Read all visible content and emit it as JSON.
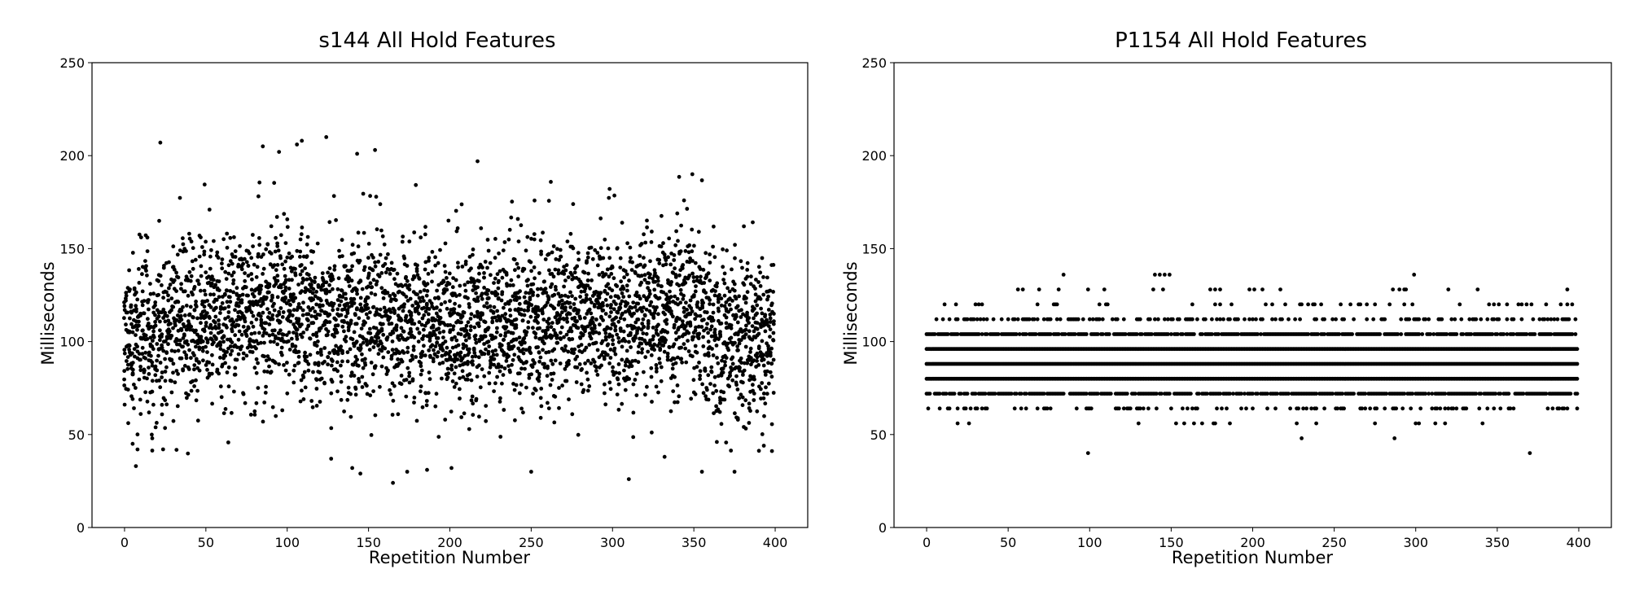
{
  "chart_data": [
    {
      "type": "scatter",
      "title": "s144 All Hold Features",
      "xlabel": "Repetition Number",
      "ylabel": "Milliseconds",
      "xlim": [
        -20,
        420
      ],
      "ylim": [
        0,
        250
      ],
      "xticks": [
        0,
        50,
        100,
        150,
        200,
        250,
        300,
        350,
        400
      ],
      "yticks": [
        0,
        50,
        100,
        150,
        200,
        250
      ],
      "grid": false,
      "marker_color": "#000000",
      "points_per_repetition": 10,
      "x_range": [
        0,
        399
      ],
      "y_range_observed": [
        24,
        210
      ],
      "center_profile": [
        {
          "x": 0,
          "y": 102
        },
        {
          "x": 50,
          "y": 112
        },
        {
          "x": 100,
          "y": 118
        },
        {
          "x": 150,
          "y": 115
        },
        {
          "x": 200,
          "y": 108
        },
        {
          "x": 250,
          "y": 112
        },
        {
          "x": 300,
          "y": 115
        },
        {
          "x": 340,
          "y": 120
        },
        {
          "x": 370,
          "y": 100
        },
        {
          "x": 400,
          "y": 104
        }
      ],
      "notable_points": [
        {
          "x": 22,
          "y": 207
        },
        {
          "x": 85,
          "y": 205
        },
        {
          "x": 95,
          "y": 202
        },
        {
          "x": 106,
          "y": 206
        },
        {
          "x": 109,
          "y": 208
        },
        {
          "x": 124,
          "y": 210
        },
        {
          "x": 143,
          "y": 201
        },
        {
          "x": 154,
          "y": 203
        },
        {
          "x": 217,
          "y": 197
        },
        {
          "x": 5,
          "y": 45
        },
        {
          "x": 8,
          "y": 42
        },
        {
          "x": 7,
          "y": 33
        },
        {
          "x": 127,
          "y": 37
        },
        {
          "x": 140,
          "y": 32
        },
        {
          "x": 145,
          "y": 29
        },
        {
          "x": 165,
          "y": 24
        },
        {
          "x": 186,
          "y": 31
        },
        {
          "x": 201,
          "y": 32
        },
        {
          "x": 250,
          "y": 30
        },
        {
          "x": 310,
          "y": 26
        },
        {
          "x": 332,
          "y": 38
        },
        {
          "x": 355,
          "y": 30
        },
        {
          "x": 375,
          "y": 30
        },
        {
          "x": 393,
          "y": 44
        }
      ]
    },
    {
      "type": "scatter",
      "title": "P1154 All Hold Features",
      "xlabel": "Repetition Number",
      "ylabel": "Milliseconds",
      "xlim": [
        -20,
        420
      ],
      "ylim": [
        0,
        250
      ],
      "xticks": [
        0,
        50,
        100,
        150,
        200,
        250,
        300,
        350,
        400
      ],
      "yticks": [
        0,
        50,
        100,
        150,
        200,
        250
      ],
      "grid": false,
      "marker_color": "#000000",
      "x_range": [
        0,
        399
      ],
      "quantized_levels": [
        {
          "y": 56,
          "density": 0.04
        },
        {
          "y": 64,
          "density": 0.28
        },
        {
          "y": 72,
          "density": 0.85
        },
        {
          "y": 80,
          "density": 1.0
        },
        {
          "y": 88,
          "density": 1.0
        },
        {
          "y": 96,
          "density": 1.0
        },
        {
          "y": 104,
          "density": 0.85
        },
        {
          "y": 112,
          "density": 0.38
        },
        {
          "y": 120,
          "density": 0.13
        },
        {
          "y": 128,
          "density": 0.05
        }
      ],
      "notable_points": [
        {
          "x": 84,
          "y": 136
        },
        {
          "x": 140,
          "y": 136
        },
        {
          "x": 143,
          "y": 136
        },
        {
          "x": 146,
          "y": 136
        },
        {
          "x": 149,
          "y": 136
        },
        {
          "x": 299,
          "y": 136
        },
        {
          "x": 99,
          "y": 40
        },
        {
          "x": 230,
          "y": 48
        },
        {
          "x": 287,
          "y": 48
        },
        {
          "x": 370,
          "y": 40
        }
      ]
    }
  ]
}
